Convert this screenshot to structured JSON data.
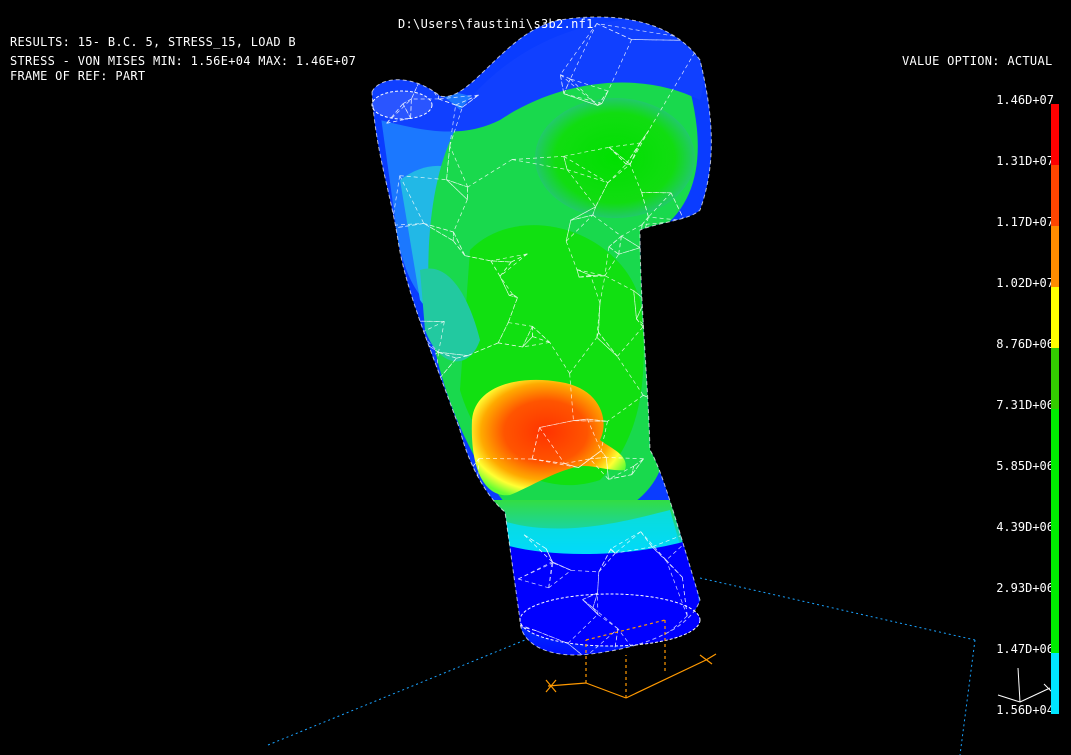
{
  "header": {
    "file_path": "D:\\Users\\faustini\\s3b2.nf1",
    "results_line": "RESULTS: 15- B.C. 5, STRESS_15, LOAD B",
    "stress_line": "STRESS - VON MISES MIN: 1.56E+04 MAX: 1.46E+07",
    "frame_line": "FRAME OF REF: PART",
    "value_option": "VALUE OPTION: ACTUAL"
  },
  "legend": {
    "labels": [
      "1.46D+07",
      "1.31D+07",
      "1.17D+07",
      "1.02D+07",
      "8.76D+06",
      "7.31D+06",
      "5.85D+06",
      "4.39D+06",
      "2.93D+06",
      "1.47D+06",
      "1.56D+04"
    ],
    "colors": [
      "#ff0000",
      "#ff4500",
      "#ff8c00",
      "#ffff00",
      "#33cc00",
      "#00ee00",
      "#00ee00",
      "#00ee00",
      "#00ee00",
      "#00e5ff",
      "#0000ff"
    ]
  },
  "colors": {
    "background": "#000000",
    "mesh_line": "#ffffff",
    "ground_line": "#00aaff",
    "triad": "#ff9900"
  },
  "icons": {
    "triad": "coordinate-triad-icon",
    "view_axes": "view-axes-icon"
  }
}
